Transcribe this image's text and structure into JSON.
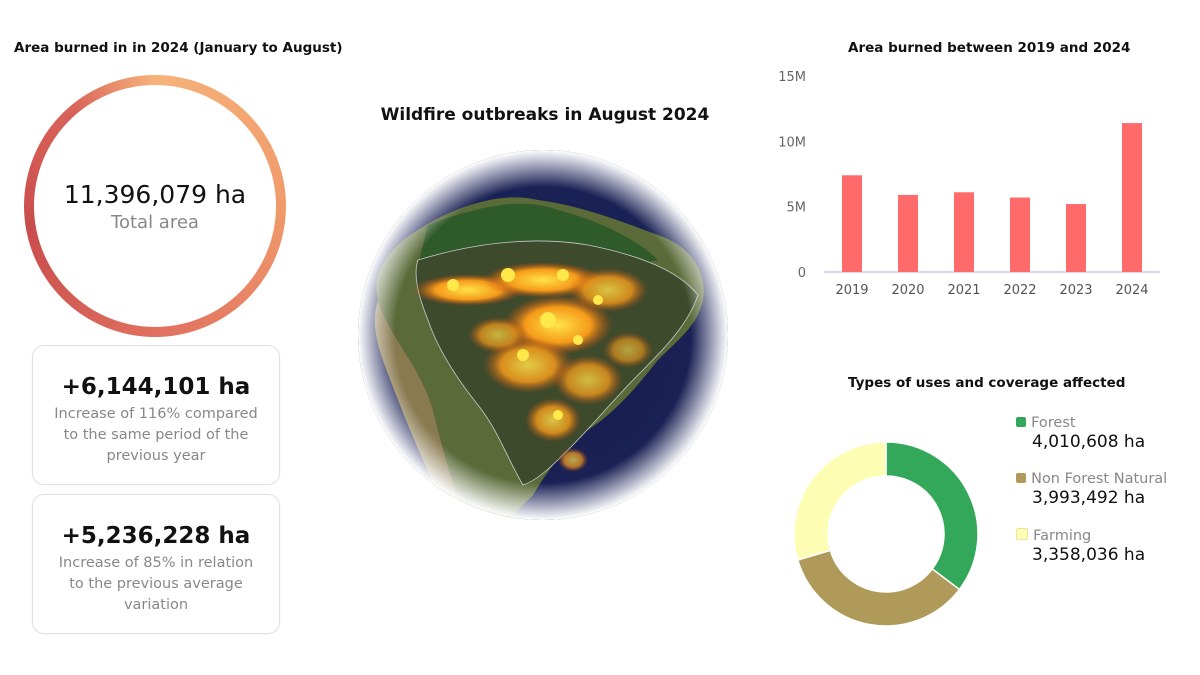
{
  "left": {
    "title": "Area burned in in 2024 (January to August)",
    "total_value": "11,396,079 ha",
    "total_label": "Total area",
    "cards": [
      {
        "value": "+6,144,101 ha",
        "lines": [
          "Increase of 116% compared",
          "to the same period of the",
          "previous year"
        ]
      },
      {
        "value": "+5,236,228 ha",
        "lines": [
          "Increase of 85% in relation",
          "to the previous average",
          "variation"
        ]
      }
    ]
  },
  "map": {
    "title": "Wildfire outbreaks in August 2024"
  },
  "chart_data": [
    {
      "type": "bar",
      "title": "Area burned between 2019 and 2024",
      "categories": [
        "2019",
        "2020",
        "2021",
        "2022",
        "2023",
        "2024"
      ],
      "values": [
        7400000,
        5900000,
        6100000,
        5700000,
        5200000,
        11396079
      ],
      "ylim": [
        0,
        15000000
      ],
      "yticks": [
        {
          "v": 0,
          "label": "0"
        },
        {
          "v": 5000000,
          "label": "5M"
        },
        {
          "v": 10000000,
          "label": "10M"
        },
        {
          "v": 15000000,
          "label": "15M"
        }
      ],
      "color": "#ff6b6b",
      "grid": false
    },
    {
      "type": "pie",
      "title": "Types of uses and coverage affected",
      "legend_position": "right",
      "slices": [
        {
          "name": "Forest",
          "value": 4010608,
          "label": "4,010,608 ha",
          "color": "#34a85a"
        },
        {
          "name": "Non Forest Natural",
          "value": 3993492,
          "label": "3,993,492 ha",
          "color": "#b09a5a"
        },
        {
          "name": "Farming",
          "value": 3358036,
          "label": "3,358,036 ha",
          "color": "#fefdb4"
        }
      ]
    }
  ]
}
